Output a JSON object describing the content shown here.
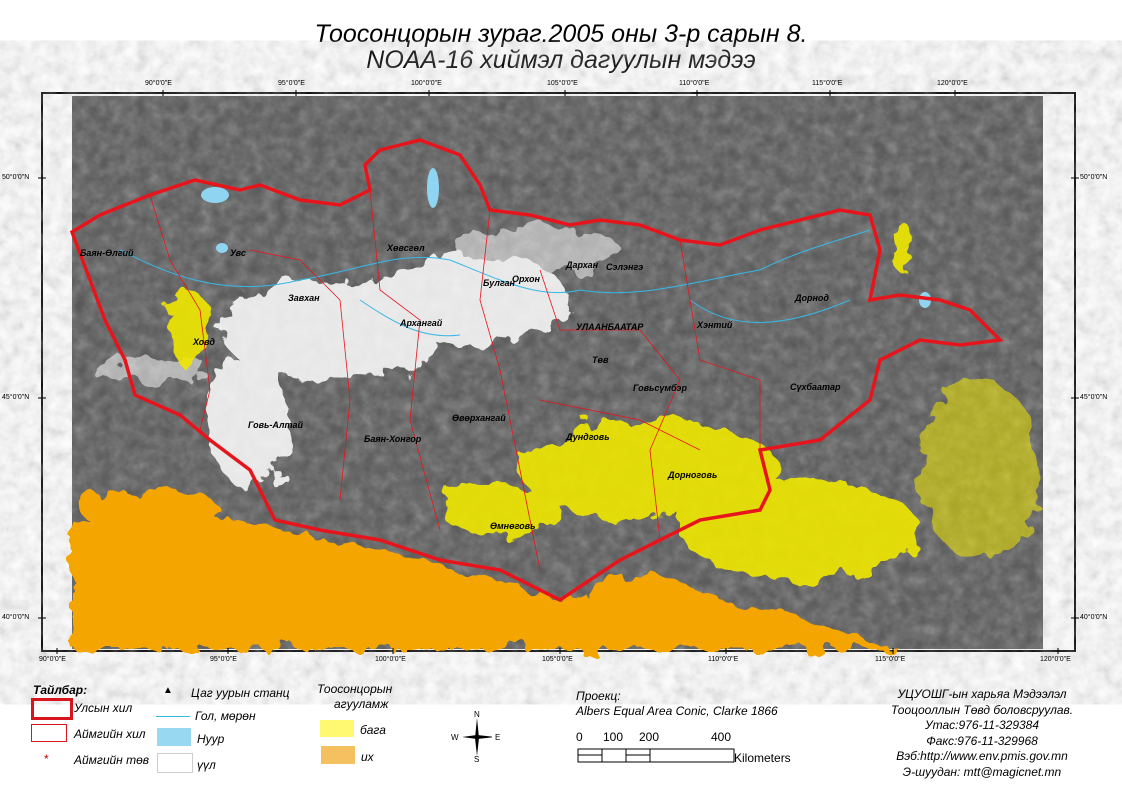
{
  "title": {
    "line1": "Тоосонцорын зураг.2005 оны 3-р сарын 8.",
    "line2": "NOAA-16 хиймэл дагуулын мэдээ"
  },
  "graticule": {
    "top": [
      "90°0'0\"E",
      "95°0'0\"E",
      "100°0'0\"E",
      "105°0'0\"E",
      "110°0'0\"E",
      "115°0'0\"E",
      "120°0'0\"E"
    ],
    "bottom": [
      "90°0'0\"E",
      "95°0'0\"E",
      "100°0'0\"E",
      "105°0'0\"E",
      "110°0'0\"E",
      "115°0'0\"E",
      "120°0'0\"E"
    ],
    "left": [
      "50°0'0\"N",
      "45°0'0\"N",
      "40°0'0\"N"
    ],
    "right": [
      "50°0'0\"N",
      "45°0'0\"N",
      "40°0'0\"N"
    ]
  },
  "aimags": [
    "Баян-Өлгий",
    "Увс",
    "Завхан",
    "Хөвсгөл",
    "Булган",
    "Орхон",
    "Дархан",
    "Сэлэнгэ",
    "Архангай",
    "УЛААНБААТАР",
    "Хэнтий",
    "Дорнод",
    "Ховд",
    "Төв",
    "Говьсүмбэр",
    "Сүхбаатар",
    "Говь-Алтай",
    "Баян-Хонгор",
    "Өвөрхангай",
    "Дундговь",
    "Дорноговь",
    "Өмнөговь"
  ],
  "legend": {
    "title": "Тайлбар:",
    "national_border": "Улсын хил",
    "aimag_border": "Аймгийн хил",
    "aimag_center": "Аймгийн төв",
    "weather_station": "Цаг уурын станц",
    "river": "Гол, мөрөн",
    "lake": "Нуур",
    "cloud": "үүл",
    "dust_title_1": "Тоосонцорын",
    "dust_title_2": "агууламж",
    "low": "бага",
    "high": "их"
  },
  "compass": {
    "n": "N",
    "s": "S",
    "e": "E",
    "w": "W"
  },
  "projection": {
    "label": "Проекц:",
    "value": "Albers Equal Area Conic, Clarke 1866"
  },
  "scalebar": {
    "ticks": [
      "0",
      "100",
      "200",
      "400"
    ],
    "unit": "Kilometers"
  },
  "credits": [
    "УЦУОШГ-ын харьяа Мэдээлэл",
    "Тооцооллын Төвд боловсруулав.",
    "Утас:976-11-329384",
    "Факс:976-11-329968",
    "Вэб:http://www.env.pmis.gov.mn",
    "Э-шуудан: mtt@magicnet.mn"
  ],
  "colors": {
    "border": "#e8141c",
    "river": "#38b8e8",
    "lake": "#8fd4f0",
    "low": "#fff870",
    "high": "#f5c060",
    "dust_high_map": "#f5a500",
    "background": "#555555"
  }
}
